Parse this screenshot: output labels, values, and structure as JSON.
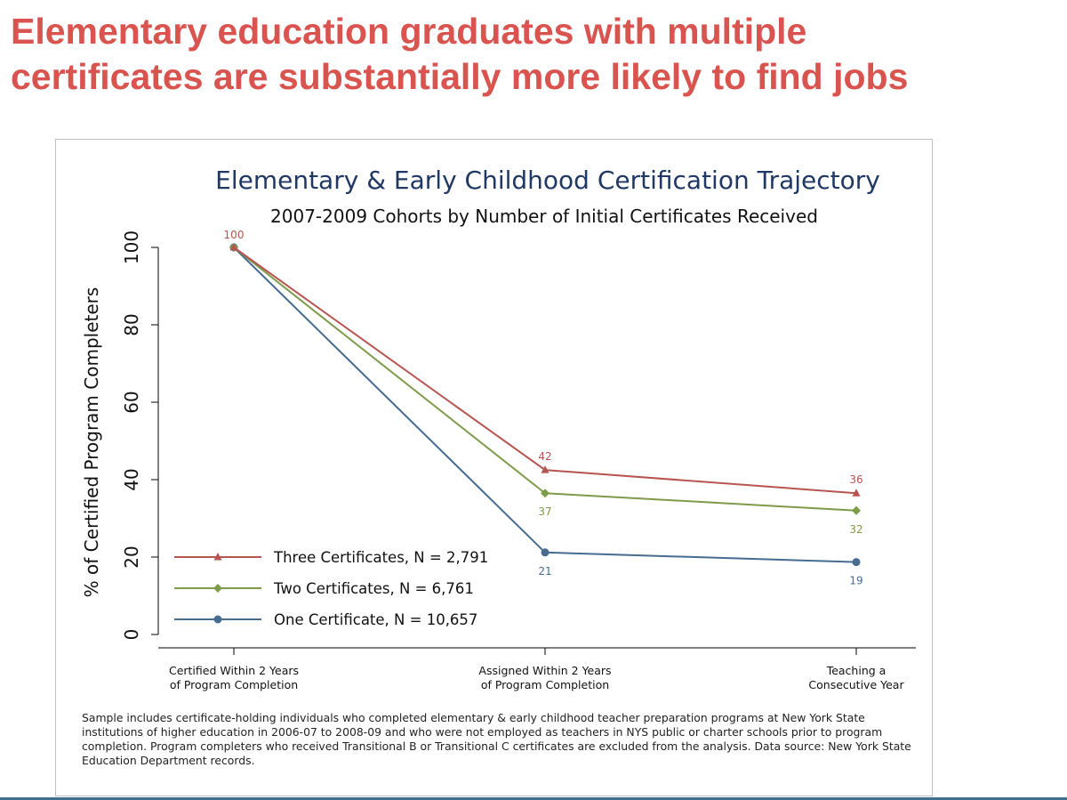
{
  "slide": {
    "headline_line1": "Elementary education graduates with multiple",
    "headline_line2": "certificates are substantially more likely to find jobs"
  },
  "colors": {
    "headline": "#d9534f",
    "three": "#b85450",
    "two": "#7e9b4a",
    "one": "#466c92",
    "title": "#1f3864"
  },
  "chart_data": {
    "type": "line",
    "title": "Elementary & Early Childhood Certification Trajectory",
    "subtitle": "2007-2009 Cohorts by Number of Initial Certificates Received",
    "ylabel": "% of Certified Program Completers",
    "xlabel": "",
    "ylim": [
      0,
      100
    ],
    "yticks": [
      "0",
      "20",
      "40",
      "60",
      "80",
      "100"
    ],
    "categories": [
      [
        "Certified Within 2 Years",
        "of Program Completion"
      ],
      [
        "Assigned Within 2 Years",
        "of Program Completion"
      ],
      [
        "Teaching a",
        "Consecutive Year"
      ]
    ],
    "series": [
      {
        "name": "Three Certificates, N = 2,791",
        "marker": "triangle",
        "color": "#b85450",
        "values": [
          100,
          42.5,
          36.5
        ],
        "labels": [
          "100",
          "42",
          "36"
        ]
      },
      {
        "name": "Two Certificates, N = 6,761",
        "marker": "diamond",
        "color": "#7e9b4a",
        "values": [
          100,
          36.5,
          32
        ],
        "labels": [
          "",
          "37",
          "32"
        ]
      },
      {
        "name": "One Certificate, N = 10,657",
        "marker": "circle",
        "color": "#466c92",
        "values": [
          100,
          21.2,
          18.7
        ],
        "labels": [
          "",
          "21",
          "19"
        ]
      }
    ],
    "legend_position": "bottom-left",
    "grid": false
  },
  "footnote": "Sample includes certificate-holding individuals who completed elementary & early childhood teacher preparation programs at New York State institutions of higher education in 2006-07 to 2008-09 and who were not employed as teachers in NYS public or charter schools prior to program completion. Program completers who received Transitional B or Transitional C certificates are excluded from the analysis. Data source: New York State Education Department records."
}
